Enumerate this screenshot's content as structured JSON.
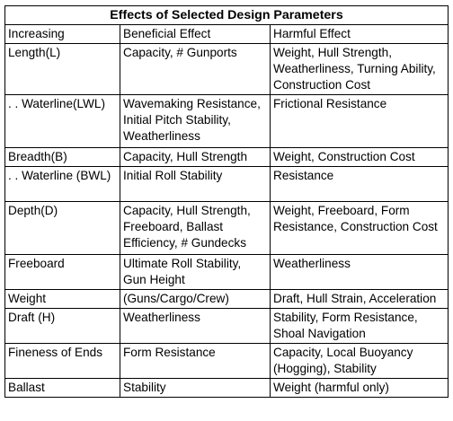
{
  "table": {
    "title": "Effects of Selected Design Parameters",
    "headers": [
      "Increasing",
      "Beneficial Effect",
      "Harmful Effect"
    ],
    "rows": [
      {
        "param": "Length(L)",
        "beneficial": "Capacity, # Gunports",
        "harmful": "Weight, Hull Strength, Weatherliness, Turning Ability, Construction Cost"
      },
      {
        "param": ". . Waterline(LWL)",
        "beneficial": "Wavemaking Resistance, Initial Pitch Stability, Weatherliness",
        "harmful": "Frictional Resistance"
      },
      {
        "param": "Breadth(B)",
        "beneficial": "Capacity, Hull Strength",
        "harmful": "Weight, Construction Cost"
      },
      {
        "param": ". . Waterline (BWL)",
        "beneficial": "Initial Roll Stability",
        "harmful": "Resistance"
      },
      {
        "param": "Depth(D)",
        "beneficial": "Capacity, Hull Strength, Freeboard, Ballast Efficiency, # Gundecks",
        "harmful": "Weight, Freeboard, Form Resistance, Construction Cost"
      },
      {
        "param": "Freeboard",
        "beneficial": "Ultimate Roll Stability, Gun Height",
        "harmful": "Weatherliness"
      },
      {
        "param": "Weight",
        "beneficial": "(Guns/Cargo/Crew)",
        "harmful": "Draft, Hull Strain, Acceleration"
      },
      {
        "param": "Draft (H)",
        "beneficial": "Weatherliness",
        "harmful": "Stability, Form Resistance, Shoal Navigation"
      },
      {
        "param": "Fineness of Ends",
        "beneficial": "Form Resistance",
        "harmful": "Capacity, Local Buoyancy (Hogging), Stability"
      },
      {
        "param": "Ballast",
        "beneficial": "Stability",
        "harmful": "Weight (harmful only)"
      }
    ]
  }
}
